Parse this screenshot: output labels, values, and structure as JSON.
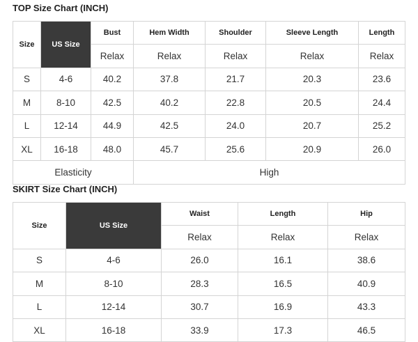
{
  "top": {
    "title": "TOP Size Chart (INCH)",
    "headers": [
      "Size",
      "US Size",
      "Bust",
      "Hem Width",
      "Shoulder",
      "Sleeve Length",
      "Length"
    ],
    "subheaders": [
      "Relax",
      "Relax",
      "Relax",
      "Relax",
      "Relax"
    ],
    "rows": [
      [
        "S",
        "4-6",
        "40.2",
        "37.8",
        "21.7",
        "20.3",
        "23.6"
      ],
      [
        "M",
        "8-10",
        "42.5",
        "40.2",
        "22.8",
        "20.5",
        "24.4"
      ],
      [
        "L",
        "12-14",
        "44.9",
        "42.5",
        "24.0",
        "20.7",
        "25.2"
      ],
      [
        "XL",
        "16-18",
        "48.0",
        "45.7",
        "25.6",
        "20.9",
        "26.0"
      ]
    ],
    "footer": [
      "Elasticity",
      "High"
    ]
  },
  "skirt": {
    "title": "SKIRT Size Chart (INCH)",
    "headers": [
      "Size",
      "US Size",
      "Waist",
      "Length",
      "Hip"
    ],
    "subheaders": [
      "Relax",
      "Relax",
      "Relax"
    ],
    "rows": [
      [
        "S",
        "4-6",
        "26.0",
        "16.1",
        "38.6"
      ],
      [
        "M",
        "8-10",
        "28.3",
        "16.5",
        "40.9"
      ],
      [
        "L",
        "12-14",
        "30.7",
        "16.9",
        "43.3"
      ],
      [
        "XL",
        "16-18",
        "33.9",
        "17.3",
        "46.5"
      ]
    ]
  }
}
